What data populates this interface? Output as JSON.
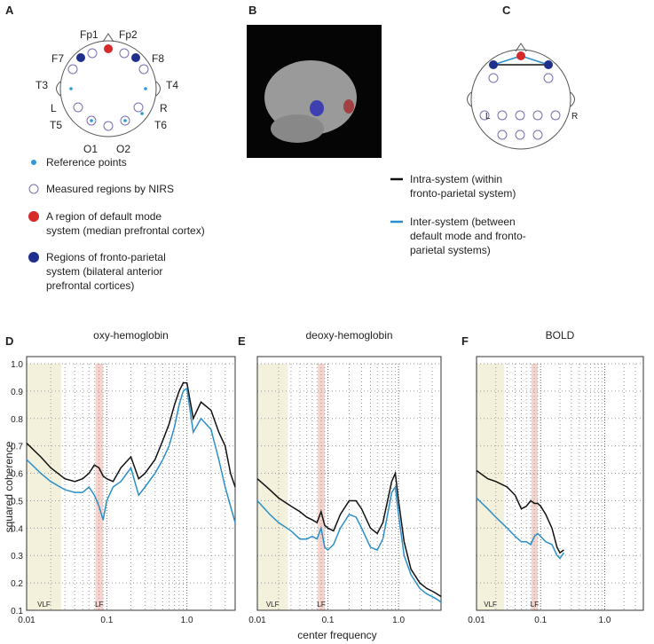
{
  "panels": {
    "a": "A",
    "b": "B",
    "c": "C",
    "d": "D",
    "e": "E",
    "f": "F"
  },
  "electrodes": {
    "fp1": "Fp1",
    "fp2": "Fp2",
    "f7": "F7",
    "f8": "F8",
    "t3": "T3",
    "t4": "T4",
    "left": "L",
    "right": "R",
    "t5": "T5",
    "t6": "T6",
    "o1": "O1",
    "o2": "O2"
  },
  "head_c": {
    "left": "L",
    "right": "R"
  },
  "legend_a": [
    {
      "lines": [
        "Reference points"
      ]
    },
    {
      "lines": [
        "Measured regions by NIRS"
      ]
    },
    {
      "lines": [
        "A region of default mode",
        "system (median prefrontal cortex)"
      ]
    },
    {
      "lines": [
        "Regions of fronto-parietal",
        "system (bilateral anterior",
        "prefrontal cortices)"
      ]
    }
  ],
  "legend_c": [
    {
      "lines": [
        "Intra-system (within",
        "fronto-parietal system)"
      ]
    },
    {
      "lines": [
        "Inter-system (between",
        "default mode and fronto-",
        "parietal systems)"
      ]
    }
  ],
  "xlabel": "center frequency",
  "chart_data": [
    {
      "type": "line",
      "title": "oxy-hemoglobin",
      "ylabel": "squared coherence",
      "xscale": "log",
      "xlim": [
        0.01,
        4
      ],
      "ylim": [
        0.1,
        1.0
      ],
      "xticks": [
        0.01,
        0.1,
        {
          "value": 1.0,
          "label": "1.0"
        }
      ],
      "yticks": [
        0.1,
        0.2,
        0.3,
        0.4,
        0.5,
        0.6,
        0.7,
        0.8,
        0.9,
        {
          "value": 1.0,
          "label": "1.0"
        }
      ],
      "bands": [
        {
          "label": "VLF",
          "range": [
            0.01,
            0.027
          ],
          "color": "#f3f0dc"
        },
        {
          "label": "LF",
          "range": [
            0.072,
            0.09
          ],
          "color": "#f6d3cc"
        }
      ],
      "x": [
        0.01,
        0.015,
        0.02,
        0.03,
        0.04,
        0.05,
        0.06,
        0.07,
        0.08,
        0.09,
        0.1,
        0.12,
        0.15,
        0.2,
        0.25,
        0.3,
        0.4,
        0.5,
        0.6,
        0.7,
        0.8,
        0.9,
        1.0,
        1.2,
        1.5,
        2,
        2.5,
        3,
        3.5,
        4
      ],
      "series": [
        {
          "color": "#111111",
          "values": [
            0.71,
            0.66,
            0.62,
            0.58,
            0.57,
            0.58,
            0.6,
            0.63,
            0.62,
            0.59,
            0.58,
            0.57,
            0.62,
            0.66,
            0.58,
            0.6,
            0.65,
            0.72,
            0.78,
            0.85,
            0.9,
            0.93,
            0.93,
            0.8,
            0.86,
            0.83,
            0.75,
            0.7,
            0.6,
            0.55
          ]
        },
        {
          "color": "#2a8fc9",
          "values": [
            0.65,
            0.6,
            0.57,
            0.54,
            0.53,
            0.53,
            0.55,
            0.52,
            0.48,
            0.43,
            0.5,
            0.55,
            0.57,
            0.62,
            0.52,
            0.55,
            0.6,
            0.65,
            0.7,
            0.77,
            0.85,
            0.9,
            0.91,
            0.75,
            0.8,
            0.76,
            0.65,
            0.55,
            0.48,
            0.42
          ]
        }
      ]
    },
    {
      "type": "line",
      "title": "deoxy-hemoglobin",
      "xscale": "log",
      "xlim": [
        0.01,
        4
      ],
      "ylim": [
        0.1,
        1.0
      ],
      "xticks": [
        0.01,
        0.1,
        {
          "value": 1.0,
          "label": "1.0"
        }
      ],
      "bands": [
        {
          "label": "VLF",
          "range": [
            0.01,
            0.027
          ],
          "color": "#f3f0dc"
        },
        {
          "label": "LF",
          "range": [
            0.072,
            0.09
          ],
          "color": "#f6d3cc"
        }
      ],
      "x": [
        0.01,
        0.015,
        0.02,
        0.03,
        0.04,
        0.05,
        0.06,
        0.07,
        0.08,
        0.09,
        0.1,
        0.12,
        0.15,
        0.2,
        0.25,
        0.3,
        0.4,
        0.5,
        0.6,
        0.7,
        0.8,
        0.9,
        1.0,
        1.2,
        1.5,
        2,
        2.5,
        3,
        3.5,
        4
      ],
      "series": [
        {
          "color": "#111111",
          "values": [
            0.58,
            0.54,
            0.51,
            0.48,
            0.46,
            0.44,
            0.43,
            0.42,
            0.46,
            0.41,
            0.4,
            0.39,
            0.45,
            0.5,
            0.5,
            0.47,
            0.4,
            0.38,
            0.42,
            0.5,
            0.57,
            0.6,
            0.5,
            0.35,
            0.25,
            0.2,
            0.18,
            0.17,
            0.16,
            0.15
          ]
        },
        {
          "color": "#2a8fc9",
          "values": [
            0.5,
            0.45,
            0.42,
            0.39,
            0.36,
            0.36,
            0.37,
            0.36,
            0.4,
            0.33,
            0.32,
            0.34,
            0.4,
            0.45,
            0.44,
            0.4,
            0.33,
            0.32,
            0.36,
            0.45,
            0.53,
            0.55,
            0.45,
            0.3,
            0.23,
            0.18,
            0.16,
            0.15,
            0.14,
            0.13
          ]
        }
      ]
    },
    {
      "type": "line",
      "title": "BOLD",
      "xscale": "log",
      "xlim": [
        0.01,
        4
      ],
      "ylim": [
        0.1,
        1.0
      ],
      "xticks": [
        0.01,
        0.1,
        {
          "value": 1.0,
          "label": "1.0"
        }
      ],
      "bands": [
        {
          "label": "VLF",
          "range": [
            0.01,
            0.027
          ],
          "color": "#f3f0dc"
        },
        {
          "label": "LF",
          "range": [
            0.072,
            0.09
          ],
          "color": "#f6d3cc"
        }
      ],
      "x": [
        0.01,
        0.015,
        0.02,
        0.03,
        0.04,
        0.05,
        0.06,
        0.07,
        0.08,
        0.09,
        0.1,
        0.12,
        0.15,
        0.18,
        0.2,
        0.23
      ],
      "series": [
        {
          "color": "#111111",
          "values": [
            0.61,
            0.58,
            0.57,
            0.55,
            0.52,
            0.47,
            0.48,
            0.5,
            0.49,
            0.49,
            0.48,
            0.45,
            0.4,
            0.33,
            0.31,
            0.32
          ]
        },
        {
          "color": "#2a8fc9",
          "values": [
            0.51,
            0.47,
            0.44,
            0.4,
            0.37,
            0.35,
            0.35,
            0.34,
            0.37,
            0.38,
            0.37,
            0.35,
            0.34,
            0.3,
            0.29,
            0.31
          ]
        }
      ]
    }
  ]
}
